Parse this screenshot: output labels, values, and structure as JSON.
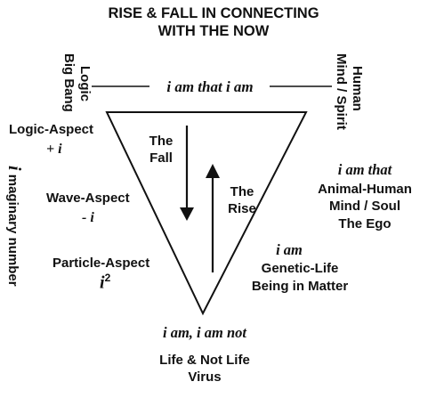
{
  "title": {
    "line1": "RISE & FALL IN CONNECTING",
    "line2": "WITH THE NOW"
  },
  "top_bar": {
    "left_vertical_1": "Logic",
    "left_vertical_2": "Big Bang",
    "center": "i am that i am",
    "right_vertical_1": "Human",
    "right_vertical_2": "Mind / Spirit"
  },
  "left_column": {
    "vertical_label_symbol": "i",
    "vertical_label_text": "maginary number",
    "logic_aspect": {
      "label": "Logic-Aspect",
      "formula": "+ i"
    },
    "wave_aspect": {
      "label": "Wave-Aspect",
      "formula": "- i"
    },
    "particle_aspect": {
      "label": "Particle-Aspect",
      "formula_base": "i",
      "formula_exp": "2"
    }
  },
  "triangle": {
    "fall_line1": "The",
    "fall_line2": "Fall",
    "rise_line1": "The",
    "rise_line2": "Rise"
  },
  "right_column": {
    "level1": {
      "italic": "i am that",
      "line1": "Animal-Human",
      "line2": "Mind / Soul",
      "line3": "The Ego"
    },
    "level2": {
      "italic": "i am",
      "line1": "Genetic-Life",
      "line2": "Being in Matter"
    }
  },
  "bottom": {
    "italic": "i am, i am not",
    "line1": "Life & Not Life",
    "line2": "Virus"
  },
  "colors": {
    "ink": "#111111",
    "paper": "#ffffff"
  }
}
